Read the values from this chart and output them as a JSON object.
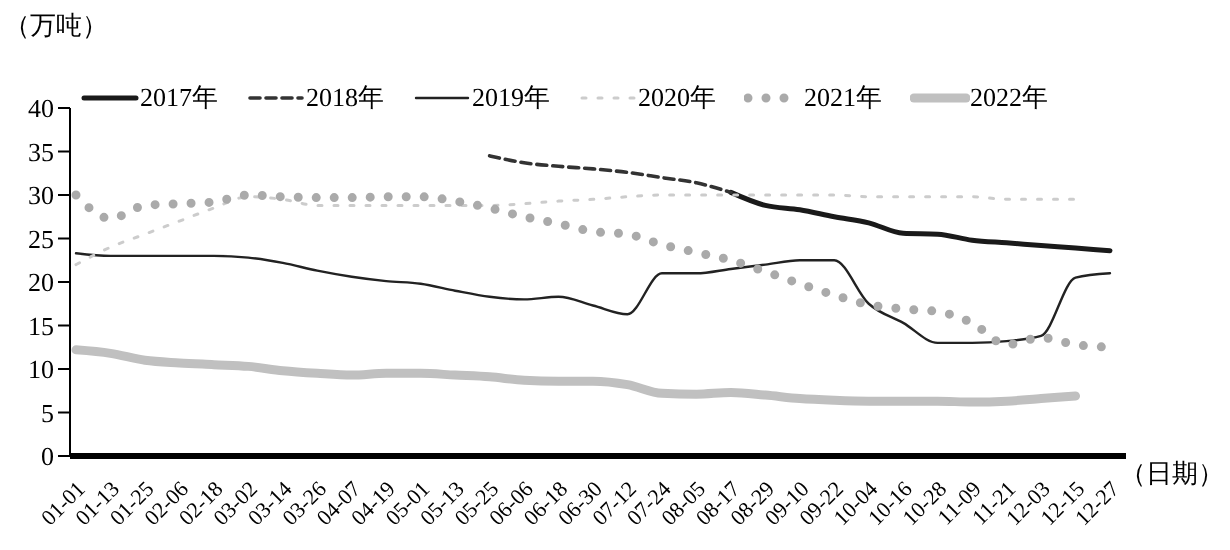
{
  "chart_data": {
    "type": "line",
    "ylabel": "（万吨）",
    "xlabel": "（日期）",
    "categories": [
      "01-01",
      "01-13",
      "01-25",
      "02-06",
      "02-18",
      "03-02",
      "03-14",
      "03-26",
      "04-07",
      "04-19",
      "05-01",
      "05-13",
      "05-25",
      "06-06",
      "06-18",
      "06-30",
      "07-12",
      "07-24",
      "08-05",
      "08-17",
      "08-29",
      "09-10",
      "09-22",
      "10-04",
      "10-16",
      "10-28",
      "11-09",
      "11-21",
      "12-03",
      "12-15",
      "12-27"
    ],
    "ylim": [
      0,
      40
    ],
    "yticks": [
      0,
      5,
      10,
      15,
      20,
      25,
      30,
      35,
      40
    ],
    "grid": false,
    "legend": "top",
    "marker": "none",
    "series": [
      {
        "name": "2017年",
        "color": "#1a1a1a",
        "line_style": "solid",
        "values": [
          null,
          null,
          null,
          null,
          null,
          null,
          null,
          null,
          null,
          null,
          null,
          null,
          null,
          null,
          null,
          null,
          null,
          null,
          null,
          30.3,
          28.8,
          28.3,
          27.5,
          26.8,
          25.6,
          25.5,
          24.8,
          24.5,
          24.2,
          23.9,
          23.6
        ]
      },
      {
        "name": "2018年",
        "color": "#333333",
        "line_style": "dashed",
        "values": [
          null,
          null,
          null,
          null,
          null,
          null,
          null,
          null,
          null,
          null,
          null,
          null,
          34.5,
          33.7,
          33.3,
          33,
          32.6,
          32,
          31.4,
          30.3,
          null,
          null,
          null,
          null,
          null,
          null,
          null,
          null,
          null,
          null,
          null
        ]
      },
      {
        "name": "2019年",
        "color": "#222222",
        "line_style": "solid",
        "values": [
          23.3,
          23,
          23,
          23,
          23,
          22.8,
          22.2,
          21.3,
          20.6,
          20.1,
          19.8,
          19,
          18.3,
          18,
          18.3,
          17.3,
          16.3,
          21,
          21,
          21.5,
          22,
          22.5,
          22.5,
          17.5,
          15.3,
          13,
          13,
          13.2,
          13.8,
          20.5,
          21
        ]
      },
      {
        "name": "2020年",
        "color": "#cccccc",
        "line_style": "dotted",
        "values": [
          22,
          24,
          25.5,
          27,
          28.5,
          29.8,
          29.5,
          28.8,
          28.8,
          28.8,
          28.8,
          28.8,
          28.8,
          29,
          29.3,
          29.5,
          29.8,
          30,
          30,
          30,
          30,
          30,
          30,
          29.8,
          29.8,
          29.8,
          29.8,
          29.5,
          29.5,
          29.5,
          null
        ]
      },
      {
        "name": "2021年",
        "color": "#aaaaaa",
        "line_style": "dotted",
        "values": [
          30,
          27.3,
          28.8,
          29,
          29.2,
          30,
          29.8,
          29.7,
          29.7,
          29.8,
          29.8,
          29.3,
          28.5,
          27.5,
          26.7,
          25.8,
          25.5,
          24.3,
          23.4,
          22.5,
          21.2,
          19.8,
          18.5,
          17.4,
          16.9,
          16.6,
          15.3,
          12.8,
          13.6,
          12.8,
          12.5
        ]
      },
      {
        "name": "2022年",
        "color": "#c0c0c0",
        "line_style": "solid",
        "values": [
          12.2,
          11.8,
          11,
          10.7,
          10.5,
          10.3,
          9.8,
          9.5,
          9.3,
          9.5,
          9.5,
          9.3,
          9.1,
          8.7,
          8.6,
          8.6,
          8.2,
          7.2,
          7.1,
          7.3,
          7,
          6.6,
          6.4,
          6.3,
          6.3,
          6.3,
          6.2,
          6.3,
          6.6,
          6.9,
          null
        ]
      }
    ]
  }
}
